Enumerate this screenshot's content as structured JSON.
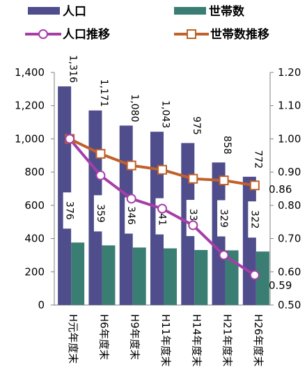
{
  "chart_data": {
    "type": "bar",
    "categories": [
      "H元年度末",
      "H6年度末",
      "H9年度末",
      "H11年度末",
      "H14年度末",
      "H21年度末",
      "H26年度末"
    ],
    "series": [
      {
        "name": "人口",
        "kind": "bar",
        "axis": "left",
        "color": "#4f4d8c",
        "values": [
          1316,
          1171,
          1080,
          1043,
          975,
          858,
          772
        ]
      },
      {
        "name": "世帯数",
        "kind": "bar",
        "axis": "left",
        "color": "#3a7d72",
        "values": [
          376,
          359,
          346,
          341,
          331,
          329,
          322
        ]
      },
      {
        "name": "人口推移",
        "kind": "line",
        "axis": "right",
        "color": "#a63ea8",
        "values": [
          1.0,
          0.89,
          0.82,
          0.79,
          0.74,
          0.65,
          0.59
        ]
      },
      {
        "name": "世帯数推移",
        "kind": "line",
        "axis": "right",
        "color": "#c0602a",
        "values": [
          1.0,
          0.955,
          0.92,
          0.907,
          0.88,
          0.875,
          0.86
        ]
      }
    ],
    "yleft": {
      "lim": [
        0,
        1400
      ],
      "ticks": [
        "0",
        "200",
        "400",
        "600",
        "800",
        "1,000",
        "1,200",
        "1,400"
      ]
    },
    "yright": {
      "lim": [
        0.5,
        1.2
      ],
      "ticks": [
        "0.50",
        "0.60",
        "0.70",
        "0.80",
        "0.90",
        "1.00",
        "1.10",
        "1.20"
      ]
    },
    "bar_labels_population": [
      "1,316",
      "1,171",
      "1,080",
      "1,043",
      "975",
      "858",
      "772"
    ],
    "bar_labels_households": [
      "376",
      "359",
      "346",
      "341",
      "331",
      "329",
      "322"
    ],
    "end_label_population_trend": "0.59",
    "end_label_household_trend": "0.86",
    "legend_position": "top",
    "grid": false
  }
}
